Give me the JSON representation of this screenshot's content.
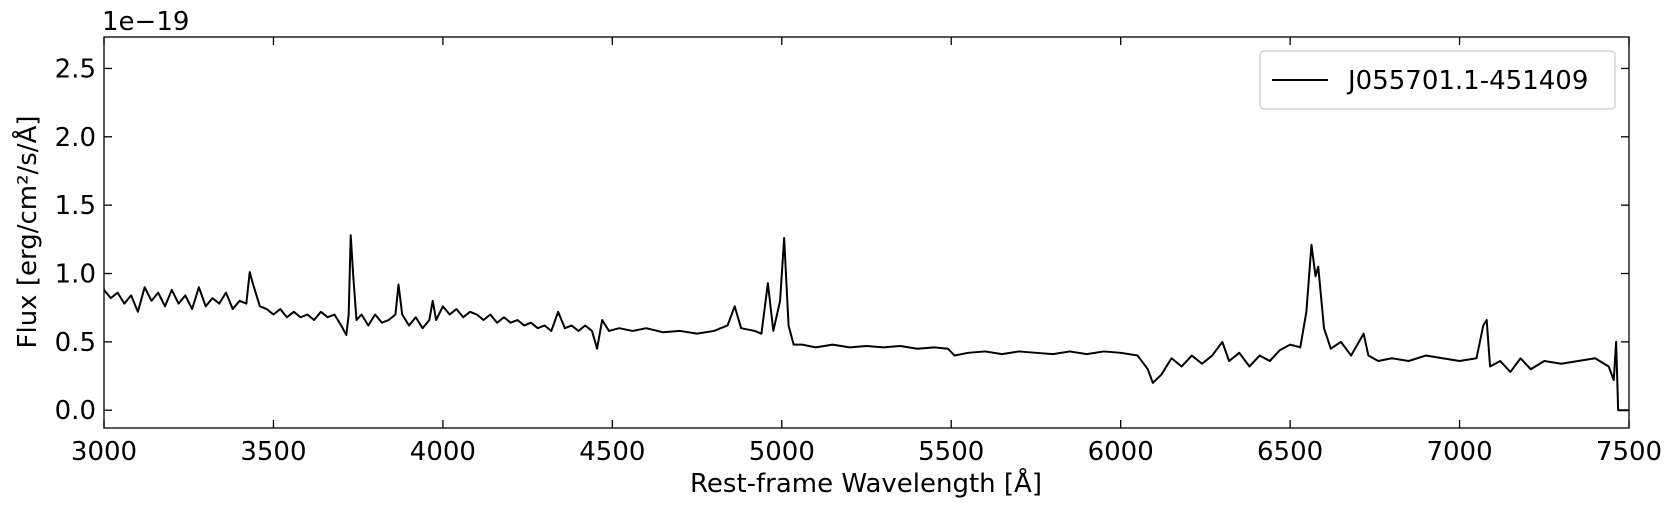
{
  "chart_data": {
    "type": "line",
    "xlabel": "Rest-frame Wavelength [Å]",
    "ylabel": "Flux [erg/cm²/s/Å]",
    "offset_label": "1e−19",
    "xlim": [
      3000,
      7500
    ],
    "ylim": [
      -0.13,
      2.73
    ],
    "xticks": [
      3000,
      3500,
      4000,
      4500,
      5000,
      5500,
      6000,
      6500,
      7000,
      7500
    ],
    "yticks": [
      {
        "value": 0,
        "label": "0.0"
      },
      0.5,
      {
        "value": 1,
        "label": "1.0"
      },
      1.5,
      {
        "value": 2,
        "label": "2.0"
      },
      2.5
    ],
    "legend": "upper right",
    "x": [
      3000,
      3020,
      3040,
      3060,
      3080,
      3100,
      3120,
      3140,
      3160,
      3180,
      3200,
      3220,
      3240,
      3260,
      3280,
      3300,
      3320,
      3340,
      3360,
      3380,
      3400,
      3420,
      3430,
      3440,
      3460,
      3480,
      3500,
      3520,
      3540,
      3560,
      3580,
      3600,
      3620,
      3640,
      3660,
      3680,
      3700,
      3715,
      3722,
      3728,
      3735,
      3745,
      3760,
      3780,
      3800,
      3820,
      3840,
      3860,
      3869,
      3880,
      3900,
      3920,
      3940,
      3960,
      3970,
      3980,
      4000,
      4020,
      4040,
      4060,
      4080,
      4100,
      4120,
      4140,
      4160,
      4180,
      4200,
      4220,
      4240,
      4260,
      4280,
      4300,
      4320,
      4340,
      4360,
      4380,
      4400,
      4420,
      4440,
      4455,
      4470,
      4490,
      4520,
      4560,
      4600,
      4650,
      4700,
      4750,
      4800,
      4840,
      4861,
      4880,
      4920,
      4940,
      4959,
      4975,
      4995,
      5007,
      5020,
      5035,
      5060,
      5100,
      5150,
      5200,
      5250,
      5300,
      5350,
      5400,
      5450,
      5490,
      5510,
      5550,
      5600,
      5650,
      5700,
      5750,
      5800,
      5850,
      5900,
      5950,
      6000,
      6050,
      6080,
      6095,
      6120,
      6150,
      6180,
      6210,
      6240,
      6270,
      6300,
      6320,
      6350,
      6380,
      6410,
      6440,
      6470,
      6500,
      6530,
      6548,
      6563,
      6575,
      6583,
      6600,
      6620,
      6650,
      6680,
      6717,
      6731,
      6760,
      6800,
      6850,
      6900,
      6950,
      7000,
      7050,
      7070,
      7080,
      7090,
      7120,
      7150,
      7180,
      7210,
      7250,
      7300,
      7350,
      7400,
      7440,
      7455,
      7462,
      7468,
      7500
    ],
    "series": [
      {
        "name": "J055701.1-451409",
        "color": "#000000",
        "values": [
          0.88,
          0.82,
          0.86,
          0.78,
          0.84,
          0.72,
          0.9,
          0.8,
          0.86,
          0.76,
          0.88,
          0.78,
          0.84,
          0.74,
          0.9,
          0.76,
          0.82,
          0.78,
          0.86,
          0.74,
          0.8,
          0.78,
          1.01,
          0.92,
          0.76,
          0.74,
          0.7,
          0.74,
          0.68,
          0.72,
          0.68,
          0.7,
          0.66,
          0.72,
          0.68,
          0.7,
          0.62,
          0.55,
          0.7,
          1.28,
          1.0,
          0.66,
          0.7,
          0.62,
          0.7,
          0.64,
          0.66,
          0.7,
          0.92,
          0.7,
          0.62,
          0.68,
          0.6,
          0.66,
          0.8,
          0.66,
          0.76,
          0.7,
          0.74,
          0.68,
          0.72,
          0.7,
          0.66,
          0.7,
          0.64,
          0.68,
          0.64,
          0.66,
          0.62,
          0.64,
          0.6,
          0.62,
          0.58,
          0.72,
          0.6,
          0.62,
          0.58,
          0.62,
          0.58,
          0.45,
          0.66,
          0.58,
          0.6,
          0.58,
          0.6,
          0.57,
          0.58,
          0.56,
          0.58,
          0.62,
          0.76,
          0.6,
          0.58,
          0.56,
          0.93,
          0.58,
          0.8,
          1.26,
          0.62,
          0.48,
          0.48,
          0.46,
          0.48,
          0.46,
          0.47,
          0.46,
          0.47,
          0.45,
          0.46,
          0.45,
          0.4,
          0.42,
          0.43,
          0.41,
          0.43,
          0.42,
          0.41,
          0.43,
          0.41,
          0.43,
          0.42,
          0.4,
          0.3,
          0.2,
          0.26,
          0.38,
          0.32,
          0.4,
          0.34,
          0.4,
          0.5,
          0.36,
          0.42,
          0.32,
          0.4,
          0.36,
          0.44,
          0.48,
          0.46,
          0.72,
          1.21,
          0.98,
          1.05,
          0.6,
          0.45,
          0.5,
          0.4,
          0.56,
          0.4,
          0.36,
          0.38,
          0.36,
          0.4,
          0.38,
          0.36,
          0.38,
          0.62,
          0.66,
          0.32,
          0.36,
          0.28,
          0.38,
          0.3,
          0.36,
          0.34,
          0.36,
          0.38,
          0.32,
          0.22,
          0.5,
          0.0,
          0.0
        ]
      }
    ]
  }
}
